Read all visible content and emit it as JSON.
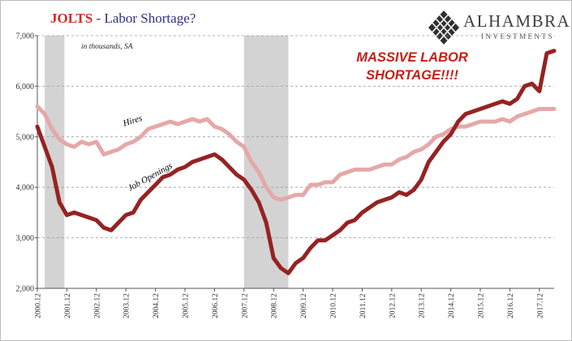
{
  "header": {
    "title_main": "JOLTS",
    "title_sep": " - ",
    "title_rest": "Labor Shortage?"
  },
  "logo": {
    "name": "ALHAMBRA",
    "subtitle": "INVESTMENTS",
    "icon": "diamond-lattice-icon"
  },
  "colors": {
    "hires": "#e5a8a8",
    "job_openings": "#962222",
    "recession": "#d3d3d3",
    "title_red": "#d42a1f",
    "title_blue": "#2f2f87",
    "annotation": "#c42117"
  },
  "chart_data": {
    "type": "line",
    "units_note": "in thousands, SA",
    "annotation": [
      "MASSIVE LABOR",
      "SHORTAGE!!!!"
    ],
    "ylim": [
      2000,
      7000
    ],
    "yticks": [
      2000,
      3000,
      4000,
      5000,
      6000,
      7000
    ],
    "ytick_labels": [
      "2,000",
      "3,000",
      "4,000",
      "5,000",
      "6,000",
      "7,000"
    ],
    "xlim": [
      "2000-12",
      "2018-06"
    ],
    "xtick_labels": [
      "2000.12",
      "2001.12",
      "2002.12",
      "2003.12",
      "2004.12",
      "2005.12",
      "2006.12",
      "2007.12",
      "2008.12",
      "2009.12",
      "2010.12",
      "2011.12",
      "2012.12",
      "2013.12",
      "2014.12",
      "2015.12",
      "2016.12",
      "2017.12"
    ],
    "grid": "horizontal dashed",
    "recessions": [
      {
        "start": "2001-03",
        "end": "2001-11"
      },
      {
        "start": "2007-12",
        "end": "2009-06"
      }
    ],
    "series": [
      {
        "name": "Hires",
        "x": [
          "2000-12",
          "2001-03",
          "2001-06",
          "2001-09",
          "2001-12",
          "2002-03",
          "2002-06",
          "2002-09",
          "2002-12",
          "2003-03",
          "2003-06",
          "2003-09",
          "2003-12",
          "2004-03",
          "2004-06",
          "2004-09",
          "2004-12",
          "2005-03",
          "2005-06",
          "2005-09",
          "2005-12",
          "2006-03",
          "2006-06",
          "2006-09",
          "2006-12",
          "2007-03",
          "2007-06",
          "2007-09",
          "2007-12",
          "2008-03",
          "2008-06",
          "2008-09",
          "2008-12",
          "2009-03",
          "2009-06",
          "2009-09",
          "2009-12",
          "2010-03",
          "2010-06",
          "2010-09",
          "2010-12",
          "2011-03",
          "2011-06",
          "2011-09",
          "2011-12",
          "2012-03",
          "2012-06",
          "2012-09",
          "2012-12",
          "2013-03",
          "2013-06",
          "2013-09",
          "2013-12",
          "2014-03",
          "2014-06",
          "2014-09",
          "2014-12",
          "2015-03",
          "2015-06",
          "2015-09",
          "2015-12",
          "2016-03",
          "2016-06",
          "2016-09",
          "2016-12",
          "2017-03",
          "2017-06",
          "2017-09",
          "2017-12",
          "2018-03",
          "2018-06"
        ],
        "values": [
          5600,
          5450,
          5150,
          4950,
          4850,
          4800,
          4900,
          4850,
          4900,
          4650,
          4700,
          4750,
          4850,
          4900,
          5000,
          5150,
          5200,
          5250,
          5300,
          5250,
          5300,
          5350,
          5300,
          5350,
          5200,
          5150,
          5050,
          4900,
          4800,
          4500,
          4300,
          4000,
          3800,
          3750,
          3800,
          3850,
          3850,
          4050,
          4050,
          4100,
          4100,
          4250,
          4300,
          4350,
          4350,
          4350,
          4400,
          4450,
          4450,
          4550,
          4600,
          4700,
          4750,
          4850,
          5000,
          5050,
          5150,
          5200,
          5200,
          5250,
          5300,
          5300,
          5300,
          5350,
          5300,
          5400,
          5450,
          5500,
          5550,
          5550,
          5550
        ]
      },
      {
        "name": "Job Openings",
        "x": [
          "2000-12",
          "2001-03",
          "2001-06",
          "2001-09",
          "2001-12",
          "2002-03",
          "2002-06",
          "2002-09",
          "2002-12",
          "2003-03",
          "2003-06",
          "2003-09",
          "2003-12",
          "2004-03",
          "2004-06",
          "2004-09",
          "2004-12",
          "2005-03",
          "2005-06",
          "2005-09",
          "2005-12",
          "2006-03",
          "2006-06",
          "2006-09",
          "2006-12",
          "2007-03",
          "2007-06",
          "2007-09",
          "2007-12",
          "2008-03",
          "2008-06",
          "2008-09",
          "2008-12",
          "2009-03",
          "2009-06",
          "2009-09",
          "2009-12",
          "2010-03",
          "2010-06",
          "2010-09",
          "2010-12",
          "2011-03",
          "2011-06",
          "2011-09",
          "2011-12",
          "2012-03",
          "2012-06",
          "2012-09",
          "2012-12",
          "2013-03",
          "2013-06",
          "2013-09",
          "2013-12",
          "2014-03",
          "2014-06",
          "2014-09",
          "2014-12",
          "2015-03",
          "2015-06",
          "2015-09",
          "2015-12",
          "2016-03",
          "2016-06",
          "2016-09",
          "2016-12",
          "2017-03",
          "2017-06",
          "2017-09",
          "2017-12",
          "2018-03",
          "2018-06"
        ],
        "values": [
          5200,
          4800,
          4400,
          3700,
          3450,
          3500,
          3450,
          3400,
          3350,
          3200,
          3150,
          3300,
          3450,
          3500,
          3750,
          3900,
          4050,
          4200,
          4250,
          4350,
          4400,
          4500,
          4550,
          4600,
          4650,
          4550,
          4400,
          4250,
          4150,
          3950,
          3700,
          3300,
          2600,
          2400,
          2300,
          2500,
          2600,
          2800,
          2950,
          2950,
          3050,
          3150,
          3300,
          3350,
          3500,
          3600,
          3700,
          3750,
          3800,
          3900,
          3850,
          3950,
          4150,
          4500,
          4700,
          4900,
          5050,
          5300,
          5450,
          5500,
          5550,
          5600,
          5650,
          5700,
          5650,
          5750,
          6000,
          6050,
          5900,
          6650,
          6700
        ]
      }
    ]
  }
}
